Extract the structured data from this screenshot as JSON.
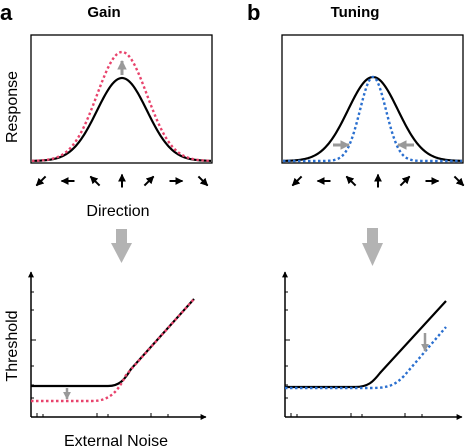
{
  "panels": {
    "a": {
      "letter": "a",
      "title": "Gain"
    },
    "b": {
      "letter": "b",
      "title": "Tuning"
    }
  },
  "axes": {
    "response_label": "Response",
    "direction_label": "Direction",
    "threshold_label": "Threshold",
    "noise_label": "External Noise"
  },
  "colors": {
    "baseline_curve": "#000000",
    "gain_curve": "#e8436c",
    "tuning_curve": "#2a6fcf",
    "indicator_arrow": "#999999",
    "big_arrow": "#b3b3b3"
  },
  "direction_arrows_deg": [
    -135,
    -90,
    -45,
    0,
    45,
    90,
    135
  ],
  "icons": {
    "change_indicator": "gray-arrow-icon",
    "flow_indicator": "down-arrow-icon",
    "direction_markers": "direction-arrow-icon"
  }
}
